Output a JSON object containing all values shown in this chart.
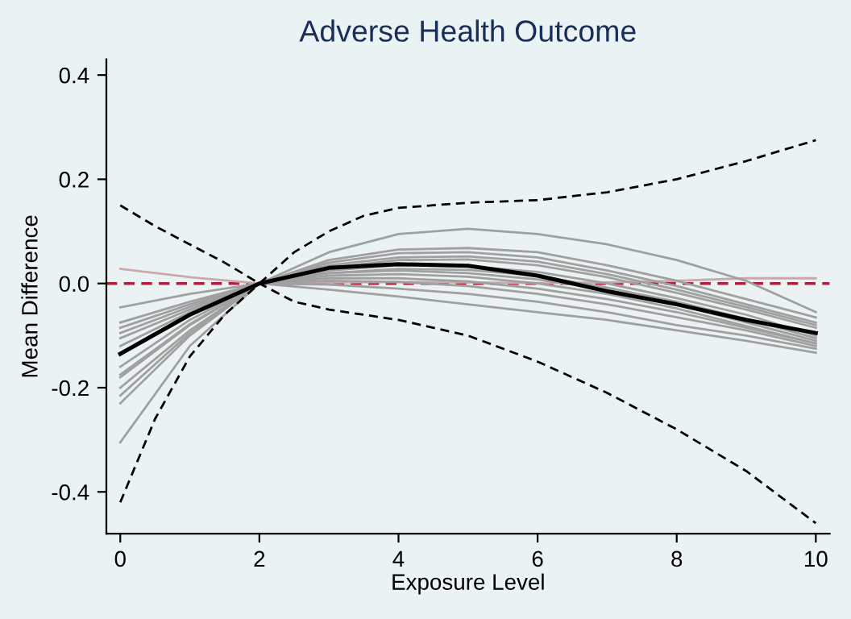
{
  "chart_data": {
    "type": "line",
    "title": "Adverse Health Outcome",
    "xlabel": "Exposure Level",
    "ylabel": "Mean Difference",
    "x": [
      0,
      1,
      2,
      3,
      4,
      5,
      6,
      7,
      8,
      9,
      10
    ],
    "series": [
      {
        "color": "#c9a9a9",
        "values": [
          0.028,
          0.012,
          0,
          0.002,
          0.003,
          0.002,
          0.001,
          0.002,
          0.005,
          0.01,
          0.01
        ]
      },
      {
        "color": "#a0a0a0",
        "values": [
          -0.046,
          -0.02,
          0,
          -0.012,
          -0.025,
          -0.04,
          -0.055,
          -0.07,
          -0.09,
          -0.11,
          -0.133
        ]
      },
      {
        "color": "#a0a0a0",
        "values": [
          -0.305,
          -0.12,
          0,
          0.06,
          0.095,
          0.105,
          0.095,
          0.075,
          0.045,
          0.005,
          -0.055
        ]
      },
      {
        "color": "#a0a0a0",
        "values": [
          -0.23,
          -0.1,
          0,
          0.045,
          0.065,
          0.068,
          0.06,
          0.035,
          0.005,
          -0.03,
          -0.065
        ]
      },
      {
        "color": "#a0a0a0",
        "values": [
          -0.215,
          -0.095,
          0,
          0.04,
          0.058,
          0.06,
          0.05,
          0.025,
          -0.005,
          -0.04,
          -0.075
        ]
      },
      {
        "color": "#a0a0a0",
        "values": [
          -0.2,
          -0.09,
          0,
          0.035,
          0.05,
          0.052,
          0.042,
          0.018,
          -0.012,
          -0.045,
          -0.08
        ]
      },
      {
        "color": "#a0a0a0",
        "values": [
          -0.18,
          -0.08,
          0,
          0.03,
          0.045,
          0.046,
          0.035,
          0.012,
          -0.018,
          -0.05,
          -0.085
        ]
      },
      {
        "color": "#a0a0a0",
        "values": [
          -0.175,
          -0.078,
          0,
          0.025,
          0.035,
          0.033,
          0.022,
          0.0,
          -0.028,
          -0.06,
          -0.1
        ]
      },
      {
        "color": "#a0a0a0",
        "values": [
          -0.16,
          -0.07,
          0,
          0.02,
          0.028,
          0.026,
          0.015,
          -0.008,
          -0.035,
          -0.068,
          -0.105
        ]
      },
      {
        "color": "#a0a0a0",
        "values": [
          -0.12,
          -0.055,
          0,
          0.02,
          0.025,
          0.02,
          0.008,
          -0.012,
          -0.04,
          -0.075,
          -0.11
        ]
      },
      {
        "color": "#a0a0a0",
        "values": [
          -0.105,
          -0.05,
          0,
          0.015,
          0.018,
          0.013,
          0.0,
          -0.02,
          -0.048,
          -0.082,
          -0.115
        ]
      },
      {
        "color": "#a0a0a0",
        "values": [
          -0.095,
          -0.045,
          0,
          0.01,
          0.01,
          0.004,
          -0.01,
          -0.03,
          -0.055,
          -0.085,
          -0.115
        ]
      },
      {
        "color": "#a0a0a0",
        "values": [
          -0.085,
          -0.04,
          0,
          0.005,
          0.003,
          -0.005,
          -0.02,
          -0.04,
          -0.065,
          -0.09,
          -0.12
        ]
      },
      {
        "color": "#a0a0a0",
        "values": [
          -0.075,
          -0.035,
          0,
          -0.002,
          -0.01,
          -0.02,
          -0.035,
          -0.055,
          -0.08,
          -0.1,
          -0.125
        ]
      },
      {
        "color": "#000000",
        "values": [
          -0.135,
          -0.06,
          0,
          0.03,
          0.037,
          0.034,
          0.015,
          -0.015,
          -0.04,
          -0.07,
          -0.095
        ]
      },
      {
        "color": "#000000",
        "line_style": "dashed",
        "x": [
          0,
          0.5,
          1,
          1.5,
          2,
          2.5,
          3,
          3.5,
          4,
          4.5,
          5,
          6,
          7,
          8,
          9,
          10
        ],
        "values": [
          0.15,
          0.11,
          0.075,
          0.04,
          0,
          0.06,
          0.1,
          0.13,
          0.145,
          0.15,
          0.155,
          0.16,
          0.175,
          0.2,
          0.235,
          0.275
        ]
      },
      {
        "color": "#000000",
        "line_style": "dashed",
        "x": [
          0,
          0.5,
          1,
          1.5,
          2,
          2.5,
          3,
          4,
          5,
          6,
          7,
          8,
          9,
          10
        ],
        "values": [
          -0.42,
          -0.26,
          -0.14,
          -0.06,
          0,
          -0.035,
          -0.05,
          -0.07,
          -0.1,
          -0.15,
          -0.21,
          -0.28,
          -0.36,
          -0.46
        ]
      }
    ],
    "ref_lines": [
      {
        "axis": "y",
        "value": 0,
        "color": "#b0203a",
        "line_style": "dashed"
      }
    ],
    "xlim": [
      -0.2,
      10.2
    ],
    "ylim": [
      -0.48,
      0.43
    ],
    "xticks": [
      0,
      2,
      4,
      6,
      8,
      10
    ],
    "yticks": [
      {
        "value": -0.4,
        "label": "-0.4"
      },
      {
        "value": -0.2,
        "label": "-0.2"
      },
      {
        "value": 0,
        "label": "0.0"
      },
      {
        "value": 0.2,
        "label": "0.2"
      },
      {
        "value": 0.4,
        "label": "0.4"
      }
    ],
    "grid": false,
    "legend": false
  }
}
